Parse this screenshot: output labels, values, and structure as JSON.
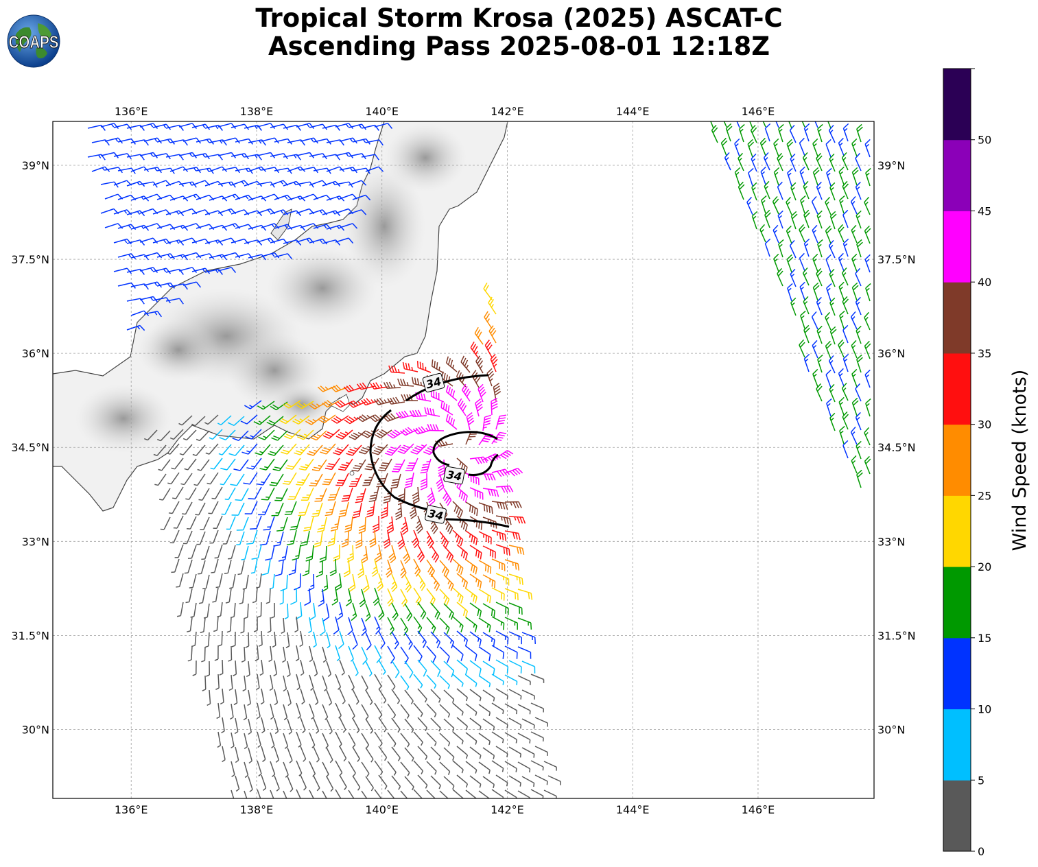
{
  "title": {
    "line1": "Tropical Storm Krosa (2025) ASCAT-C",
    "line2": "Ascending Pass 2025-08-01 12:18Z"
  },
  "logo": {
    "text": "COAPS",
    "icon": "globe-icon"
  },
  "map": {
    "lon_range": [
      134.75,
      147.85
    ],
    "lat_range": [
      28.9,
      39.7
    ],
    "lon_ticks": [
      "136°E",
      "138°E",
      "140°E",
      "142°E",
      "144°E",
      "146°E"
    ],
    "lat_ticks": [
      "39°N",
      "37.5°N",
      "36°N",
      "34.5°N",
      "33°N",
      "31.5°N",
      "30°N"
    ],
    "storm_center": {
      "lon": 141.2,
      "lat": 34.5
    },
    "contour_label": "34",
    "contour_color": "#000000"
  },
  "colorbar": {
    "label": "Wind Speed (knots)",
    "ticks": [
      "0",
      "5",
      "10",
      "15",
      "20",
      "25",
      "30",
      "35",
      "40",
      "45",
      "50"
    ],
    "bins": [
      {
        "min": 0,
        "max": 5,
        "color": "#595959"
      },
      {
        "min": 5,
        "max": 10,
        "color": "#00bfff"
      },
      {
        "min": 10,
        "max": 15,
        "color": "#0033ff"
      },
      {
        "min": 15,
        "max": 20,
        "color": "#009900"
      },
      {
        "min": 20,
        "max": 25,
        "color": "#ffd700"
      },
      {
        "min": 25,
        "max": 30,
        "color": "#ff8c00"
      },
      {
        "min": 30,
        "max": 35,
        "color": "#ff0f0f"
      },
      {
        "min": 35,
        "max": 40,
        "color": "#7f3a29"
      },
      {
        "min": 40,
        "max": 45,
        "color": "#ff00ff"
      },
      {
        "min": 45,
        "max": 50,
        "color": "#8b00b8"
      },
      {
        "min": 50,
        "max": 55,
        "color": "#2b0055"
      }
    ]
  }
}
